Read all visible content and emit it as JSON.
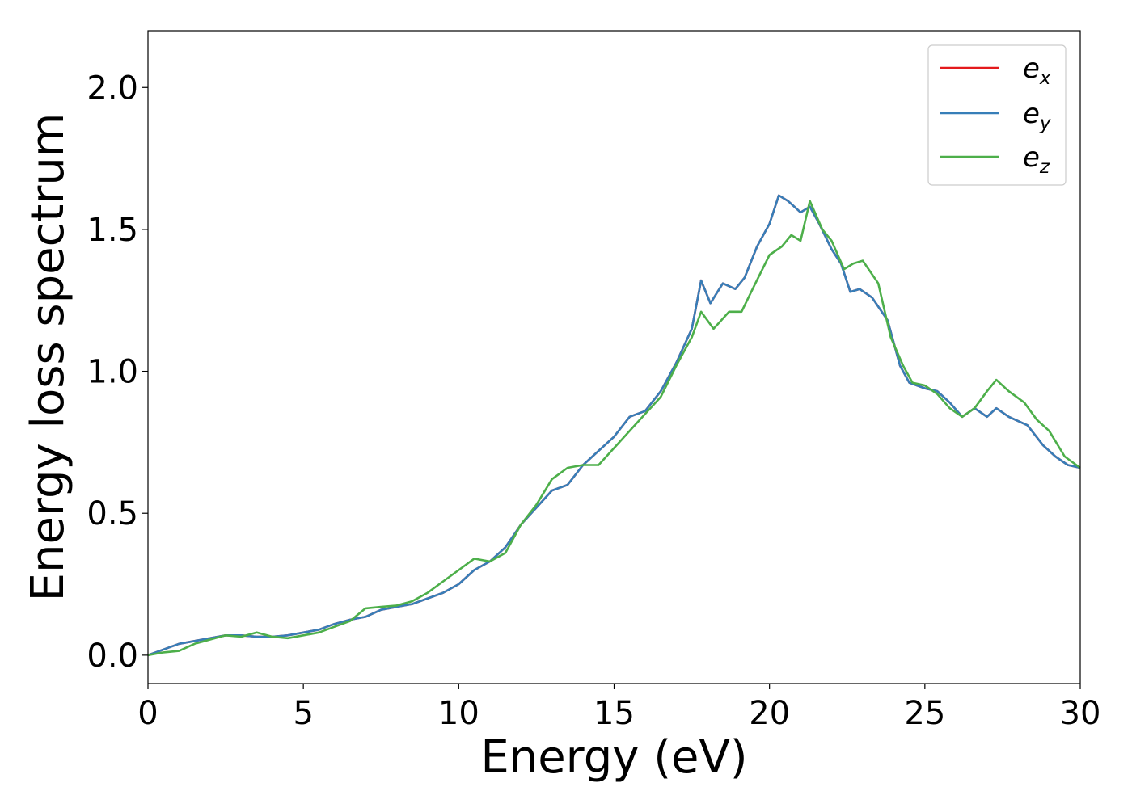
{
  "chart_data": {
    "type": "line",
    "title": "",
    "xlabel": "Energy (eV)",
    "ylabel": "Energy loss spectrum",
    "xlim": [
      0,
      30
    ],
    "ylim": [
      -0.1,
      2.2
    ],
    "x_ticks": [
      "0",
      "5",
      "10",
      "15",
      "20",
      "25",
      "30"
    ],
    "y_ticks": [
      "0.0",
      "0.5",
      "1.0",
      "1.5",
      "2.0"
    ],
    "grid": false,
    "legend_position": "top-right",
    "colors": {
      "e_x": "#e41a1c",
      "e_y": "#377eb8",
      "e_z": "#4daf4a"
    },
    "legend": [
      {
        "base": "e",
        "sub": "x"
      },
      {
        "base": "e",
        "sub": "y"
      },
      {
        "base": "e",
        "sub": "z"
      }
    ],
    "series": [
      {
        "name": "e_x",
        "color": "#e41a1c",
        "points": [
          [
            0,
            0
          ],
          [
            0.5,
            0.02
          ],
          [
            1,
            0.04
          ],
          [
            1.5,
            0.05
          ],
          [
            2,
            0.06
          ],
          [
            2.5,
            0.07
          ],
          [
            3,
            0.07
          ],
          [
            3.5,
            0.065
          ],
          [
            4,
            0.065
          ],
          [
            4.5,
            0.07
          ],
          [
            5,
            0.08
          ],
          [
            5.5,
            0.09
          ],
          [
            6,
            0.11
          ],
          [
            6.5,
            0.125
          ],
          [
            7,
            0.135
          ],
          [
            7.5,
            0.16
          ],
          [
            8,
            0.17
          ],
          [
            8.5,
            0.18
          ],
          [
            9,
            0.2
          ],
          [
            9.5,
            0.22
          ],
          [
            10,
            0.25
          ],
          [
            10.5,
            0.3
          ],
          [
            11,
            0.33
          ],
          [
            11.5,
            0.38
          ],
          [
            12,
            0.46
          ],
          [
            12.5,
            0.52
          ],
          [
            13,
            0.58
          ],
          [
            13.5,
            0.6
          ],
          [
            14,
            0.67
          ],
          [
            14.5,
            0.72
          ],
          [
            15,
            0.77
          ],
          [
            15.5,
            0.84
          ],
          [
            16,
            0.86
          ],
          [
            16.5,
            0.93
          ],
          [
            17,
            1.03
          ],
          [
            17.5,
            1.15
          ],
          [
            17.8,
            1.32
          ],
          [
            18.1,
            1.24
          ],
          [
            18.5,
            1.31
          ],
          [
            18.9,
            1.29
          ],
          [
            19.2,
            1.33
          ],
          [
            19.6,
            1.44
          ],
          [
            20,
            1.52
          ],
          [
            20.3,
            1.62
          ],
          [
            20.6,
            1.6
          ],
          [
            21,
            1.56
          ],
          [
            21.3,
            1.58
          ],
          [
            21.6,
            1.52
          ],
          [
            22,
            1.43
          ],
          [
            22.3,
            1.38
          ],
          [
            22.6,
            1.28
          ],
          [
            22.9,
            1.29
          ],
          [
            23.3,
            1.26
          ],
          [
            23.8,
            1.18
          ],
          [
            24.2,
            1.02
          ],
          [
            24.5,
            0.96
          ],
          [
            25,
            0.94
          ],
          [
            25.4,
            0.93
          ],
          [
            25.8,
            0.89
          ],
          [
            26.2,
            0.84
          ],
          [
            26.6,
            0.87
          ],
          [
            27,
            0.84
          ],
          [
            27.3,
            0.87
          ],
          [
            27.7,
            0.84
          ],
          [
            28.3,
            0.81
          ],
          [
            28.8,
            0.74
          ],
          [
            29.2,
            0.7
          ],
          [
            29.6,
            0.67
          ],
          [
            30,
            0.66
          ]
        ]
      },
      {
        "name": "e_y",
        "color": "#377eb8",
        "points": [
          [
            0,
            0
          ],
          [
            0.5,
            0.02
          ],
          [
            1,
            0.04
          ],
          [
            1.5,
            0.05
          ],
          [
            2,
            0.06
          ],
          [
            2.5,
            0.07
          ],
          [
            3,
            0.07
          ],
          [
            3.5,
            0.065
          ],
          [
            4,
            0.065
          ],
          [
            4.5,
            0.07
          ],
          [
            5,
            0.08
          ],
          [
            5.5,
            0.09
          ],
          [
            6,
            0.11
          ],
          [
            6.5,
            0.125
          ],
          [
            7,
            0.135
          ],
          [
            7.5,
            0.16
          ],
          [
            8,
            0.17
          ],
          [
            8.5,
            0.18
          ],
          [
            9,
            0.2
          ],
          [
            9.5,
            0.22
          ],
          [
            10,
            0.25
          ],
          [
            10.5,
            0.3
          ],
          [
            11,
            0.33
          ],
          [
            11.5,
            0.38
          ],
          [
            12,
            0.46
          ],
          [
            12.5,
            0.52
          ],
          [
            13,
            0.58
          ],
          [
            13.5,
            0.6
          ],
          [
            14,
            0.67
          ],
          [
            14.5,
            0.72
          ],
          [
            15,
            0.77
          ],
          [
            15.5,
            0.84
          ],
          [
            16,
            0.86
          ],
          [
            16.5,
            0.93
          ],
          [
            17,
            1.03
          ],
          [
            17.5,
            1.15
          ],
          [
            17.8,
            1.32
          ],
          [
            18.1,
            1.24
          ],
          [
            18.5,
            1.31
          ],
          [
            18.9,
            1.29
          ],
          [
            19.2,
            1.33
          ],
          [
            19.6,
            1.44
          ],
          [
            20,
            1.52
          ],
          [
            20.3,
            1.62
          ],
          [
            20.6,
            1.6
          ],
          [
            21,
            1.56
          ],
          [
            21.3,
            1.58
          ],
          [
            21.6,
            1.52
          ],
          [
            22,
            1.43
          ],
          [
            22.3,
            1.38
          ],
          [
            22.6,
            1.28
          ],
          [
            22.9,
            1.29
          ],
          [
            23.3,
            1.26
          ],
          [
            23.8,
            1.18
          ],
          [
            24.2,
            1.02
          ],
          [
            24.5,
            0.96
          ],
          [
            25,
            0.94
          ],
          [
            25.4,
            0.93
          ],
          [
            25.8,
            0.89
          ],
          [
            26.2,
            0.84
          ],
          [
            26.6,
            0.87
          ],
          [
            27,
            0.84
          ],
          [
            27.3,
            0.87
          ],
          [
            27.7,
            0.84
          ],
          [
            28.3,
            0.81
          ],
          [
            28.8,
            0.74
          ],
          [
            29.2,
            0.7
          ],
          [
            29.6,
            0.67
          ],
          [
            30,
            0.66
          ]
        ]
      },
      {
        "name": "e_z",
        "color": "#4daf4a",
        "points": [
          [
            0,
            0
          ],
          [
            0.5,
            0.01
          ],
          [
            1,
            0.015
          ],
          [
            1.5,
            0.04
          ],
          [
            2,
            0.055
          ],
          [
            2.5,
            0.07
          ],
          [
            3,
            0.065
          ],
          [
            3.5,
            0.08
          ],
          [
            4,
            0.065
          ],
          [
            4.5,
            0.06
          ],
          [
            5,
            0.07
          ],
          [
            5.5,
            0.08
          ],
          [
            6,
            0.1
          ],
          [
            6.5,
            0.12
          ],
          [
            7,
            0.165
          ],
          [
            7.5,
            0.17
          ],
          [
            8,
            0.175
          ],
          [
            8.5,
            0.19
          ],
          [
            9,
            0.22
          ],
          [
            9.5,
            0.26
          ],
          [
            10,
            0.3
          ],
          [
            10.5,
            0.34
          ],
          [
            11,
            0.33
          ],
          [
            11.5,
            0.36
          ],
          [
            12,
            0.46
          ],
          [
            12.5,
            0.53
          ],
          [
            13,
            0.62
          ],
          [
            13.5,
            0.66
          ],
          [
            14,
            0.67
          ],
          [
            14.5,
            0.67
          ],
          [
            15,
            0.73
          ],
          [
            15.5,
            0.79
          ],
          [
            16,
            0.85
          ],
          [
            16.5,
            0.91
          ],
          [
            17,
            1.02
          ],
          [
            17.5,
            1.12
          ],
          [
            17.8,
            1.21
          ],
          [
            18.2,
            1.15
          ],
          [
            18.7,
            1.21
          ],
          [
            19.1,
            1.21
          ],
          [
            19.5,
            1.3
          ],
          [
            20,
            1.41
          ],
          [
            20.4,
            1.44
          ],
          [
            20.7,
            1.48
          ],
          [
            21,
            1.46
          ],
          [
            21.3,
            1.6
          ],
          [
            21.7,
            1.5
          ],
          [
            22,
            1.46
          ],
          [
            22.4,
            1.36
          ],
          [
            22.7,
            1.38
          ],
          [
            23,
            1.39
          ],
          [
            23.5,
            1.31
          ],
          [
            23.9,
            1.12
          ],
          [
            24.3,
            1.02
          ],
          [
            24.6,
            0.96
          ],
          [
            25,
            0.95
          ],
          [
            25.4,
            0.92
          ],
          [
            25.8,
            0.87
          ],
          [
            26.2,
            0.84
          ],
          [
            26.6,
            0.87
          ],
          [
            27,
            0.93
          ],
          [
            27.3,
            0.97
          ],
          [
            27.7,
            0.93
          ],
          [
            28.2,
            0.89
          ],
          [
            28.6,
            0.83
          ],
          [
            29,
            0.79
          ],
          [
            29.5,
            0.7
          ],
          [
            30,
            0.66
          ]
        ]
      }
    ]
  }
}
